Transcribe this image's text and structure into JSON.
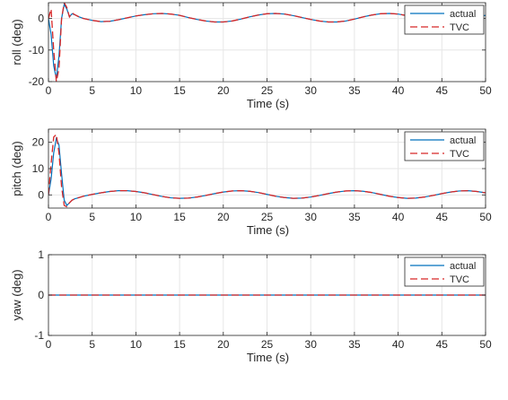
{
  "colors": {
    "actual": "#0072BD",
    "tvc": "#D62728",
    "grid": "#e6e6e6",
    "axis": "#262626"
  },
  "chart_data": [
    {
      "type": "line",
      "xlabel": "Time (s)",
      "ylabel": "roll (deg)",
      "xlim": [
        0,
        50
      ],
      "ylim": [
        -20,
        5
      ],
      "xticks": [
        0,
        5,
        10,
        15,
        20,
        25,
        30,
        35,
        40,
        45,
        50
      ],
      "yticks": [
        -20,
        -10,
        0
      ],
      "grid": true,
      "legend_position": "top-right",
      "series": [
        {
          "name": "actual",
          "style": "solid",
          "x": [
            0,
            0.3,
            0.6,
            0.9,
            1.2,
            1.5,
            1.8,
            2.1,
            2.4,
            2.7,
            3.0,
            3.5,
            4.0,
            5.0,
            6.0,
            7.0,
            8.0,
            9.0,
            10.0,
            11.0,
            12.0,
            13.0,
            14.0,
            15.0,
            16.0,
            17.0,
            18.0,
            19.0,
            20.0,
            21.0,
            22.0,
            23.0,
            24.0,
            25.0,
            26.0,
            27.0,
            28.0,
            29.0,
            30.0,
            31.0,
            32.0,
            33.0,
            34.0,
            35.0,
            36.0,
            37.0,
            38.0,
            39.0,
            40.0,
            41.0,
            42.0,
            43.0,
            44.0,
            45.0,
            46.0,
            47.0,
            48.0,
            49.0,
            50.0
          ],
          "values": [
            0,
            -5,
            -15,
            -19,
            -12,
            0,
            4.5,
            3,
            0.5,
            1.5,
            1.2,
            0.5,
            0,
            -0.6,
            -1,
            -0.9,
            -0.4,
            0.2,
            0.8,
            1.2,
            1.5,
            1.6,
            1.4,
            1,
            0.3,
            -0.3,
            -0.8,
            -1.1,
            -1.1,
            -0.8,
            -0.2,
            0.5,
            1.1,
            1.5,
            1.6,
            1.4,
            0.9,
            0.3,
            -0.3,
            -0.8,
            -1.1,
            -1.1,
            -0.8,
            -0.2,
            0.5,
            1.1,
            1.5,
            1.6,
            1.4,
            0.9,
            0.3,
            -0.3,
            -0.8,
            -1.1,
            -1.1,
            -0.8,
            -0.2,
            0.5,
            1.0
          ]
        },
        {
          "name": "TVC",
          "style": "dashed",
          "x": [
            0,
            0.3,
            0.6,
            0.9,
            1.2,
            1.5,
            1.8,
            2.1,
            2.4,
            2.7,
            3.0,
            3.5,
            4.0,
            5.0,
            6.0,
            7.0,
            8.0,
            9.0,
            10.0,
            11.0,
            12.0,
            13.0,
            14.0,
            15.0,
            16.0,
            17.0,
            18.0,
            19.0,
            20.0,
            21.0,
            22.0,
            23.0,
            24.0,
            25.0,
            26.0,
            27.0,
            28.0,
            29.0,
            30.0,
            31.0,
            32.0,
            33.0,
            34.0,
            35.0,
            36.0,
            37.0,
            38.0,
            39.0,
            40.0,
            41.0,
            42.0,
            43.0,
            44.0,
            45.0,
            46.0,
            47.0,
            48.0,
            49.0,
            50.0
          ],
          "values": [
            0,
            3,
            -10,
            -20,
            -16,
            0,
            5,
            3.5,
            0.5,
            1.8,
            1.2,
            0.5,
            0,
            -0.6,
            -1,
            -0.9,
            -0.4,
            0.2,
            0.8,
            1.2,
            1.5,
            1.6,
            1.4,
            1,
            0.3,
            -0.3,
            -0.8,
            -1.1,
            -1.1,
            -0.8,
            -0.2,
            0.5,
            1.1,
            1.5,
            1.6,
            1.4,
            0.9,
            0.3,
            -0.3,
            -0.8,
            -1.1,
            -1.1,
            -0.8,
            -0.2,
            0.5,
            1.1,
            1.5,
            1.6,
            1.4,
            0.9,
            0.3,
            -0.3,
            -0.8,
            -1.1,
            -1.1,
            -0.8,
            -0.2,
            0.5,
            1.0
          ]
        }
      ]
    },
    {
      "type": "line",
      "xlabel": "Time (s)",
      "ylabel": "pitch (deg)",
      "xlim": [
        0,
        50
      ],
      "ylim": [
        -5,
        25
      ],
      "xticks": [
        0,
        5,
        10,
        15,
        20,
        25,
        30,
        35,
        40,
        45,
        50
      ],
      "yticks": [
        0,
        10,
        20
      ],
      "grid": true,
      "legend_position": "top-right",
      "series": [
        {
          "name": "actual",
          "style": "solid",
          "x": [
            0,
            0.3,
            0.6,
            0.9,
            1.2,
            1.5,
            1.8,
            2.1,
            2.4,
            2.7,
            3.0,
            3.5,
            4.0,
            5.0,
            6.0,
            7.0,
            8.0,
            9.0,
            10.0,
            11.0,
            12.0,
            13.0,
            14.0,
            15.0,
            16.0,
            17.0,
            18.0,
            19.0,
            20.0,
            21.0,
            22.0,
            23.0,
            24.0,
            25.0,
            26.0,
            27.0,
            28.0,
            29.0,
            30.0,
            31.0,
            32.0,
            33.0,
            34.0,
            35.0,
            36.0,
            37.0,
            38.0,
            39.0,
            40.0,
            41.0,
            42.0,
            43.0,
            44.0,
            45.0,
            46.0,
            47.0,
            48.0,
            49.0,
            50.0
          ],
          "values": [
            0,
            6,
            16,
            21.5,
            19,
            8,
            -2,
            -4,
            -3,
            -2,
            -1.5,
            -1,
            -0.5,
            0.2,
            0.8,
            1.3,
            1.6,
            1.6,
            1.3,
            0.8,
            0.1,
            -0.6,
            -1.1,
            -1.3,
            -1.2,
            -0.8,
            -0.2,
            0.5,
            1.1,
            1.5,
            1.6,
            1.4,
            0.9,
            0.2,
            -0.5,
            -1.0,
            -1.3,
            -1.2,
            -0.8,
            -0.2,
            0.5,
            1.1,
            1.5,
            1.6,
            1.4,
            0.9,
            0.2,
            -0.5,
            -1.0,
            -1.3,
            -1.2,
            -0.8,
            -0.2,
            0.5,
            1.1,
            1.5,
            1.6,
            1.3,
            0.8
          ]
        },
        {
          "name": "TVC",
          "style": "dashed",
          "x": [
            0,
            0.3,
            0.6,
            0.9,
            1.2,
            1.5,
            1.8,
            2.1,
            2.4,
            2.7,
            3.0,
            3.5,
            4.0,
            5.0,
            6.0,
            7.0,
            8.0,
            9.0,
            10.0,
            11.0,
            12.0,
            13.0,
            14.0,
            15.0,
            16.0,
            17.0,
            18.0,
            19.0,
            20.0,
            21.0,
            22.0,
            23.0,
            24.0,
            25.0,
            26.0,
            27.0,
            28.0,
            29.0,
            30.0,
            31.0,
            32.0,
            33.0,
            34.0,
            35.0,
            36.0,
            37.0,
            38.0,
            39.0,
            40.0,
            41.0,
            42.0,
            43.0,
            44.0,
            45.0,
            46.0,
            47.0,
            48.0,
            49.0,
            50.0
          ],
          "values": [
            0,
            12,
            22,
            23,
            16,
            3,
            -4,
            -4.5,
            -3,
            -2,
            -1.5,
            -1,
            -0.5,
            0.2,
            0.8,
            1.3,
            1.6,
            1.6,
            1.3,
            0.8,
            0.1,
            -0.6,
            -1.1,
            -1.3,
            -1.2,
            -0.8,
            -0.2,
            0.5,
            1.1,
            1.5,
            1.6,
            1.4,
            0.9,
            0.2,
            -0.5,
            -1.0,
            -1.3,
            -1.2,
            -0.8,
            -0.2,
            0.5,
            1.1,
            1.5,
            1.6,
            1.4,
            0.9,
            0.2,
            -0.5,
            -1.0,
            -1.3,
            -1.2,
            -0.8,
            -0.2,
            0.5,
            1.1,
            1.5,
            1.6,
            1.3,
            0.8
          ]
        }
      ]
    },
    {
      "type": "line",
      "xlabel": "Time (s)",
      "ylabel": "yaw (deg)",
      "xlim": [
        0,
        50
      ],
      "ylim": [
        -1,
        1
      ],
      "xticks": [
        0,
        5,
        10,
        15,
        20,
        25,
        30,
        35,
        40,
        45,
        50
      ],
      "yticks": [
        -1,
        0,
        1
      ],
      "grid": true,
      "legend_position": "top-right",
      "series": [
        {
          "name": "actual",
          "style": "solid",
          "x": [
            0,
            50
          ],
          "values": [
            0,
            0
          ]
        },
        {
          "name": "TVC",
          "style": "dashed",
          "x": [
            0,
            50
          ],
          "values": [
            0,
            0
          ]
        }
      ]
    }
  ]
}
